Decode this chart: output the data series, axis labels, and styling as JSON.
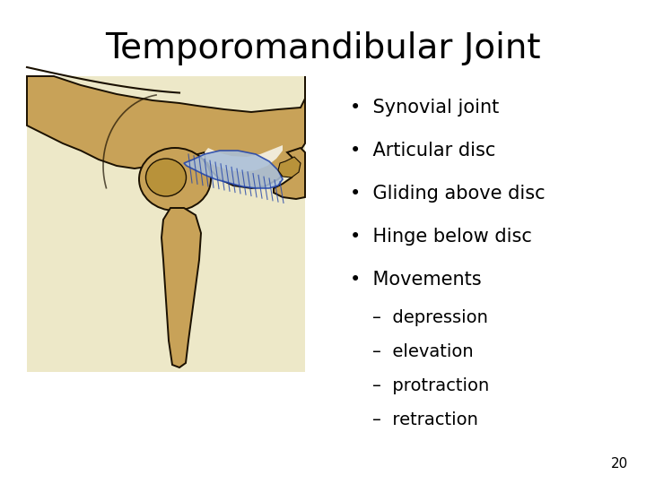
{
  "title": "Temporomandibular Joint",
  "title_fontsize": 28,
  "background_color": "#ffffff",
  "bullet_points": [
    "Synovial joint",
    "Articular disc",
    "Gliding above disc",
    "Hinge below disc",
    "Movements"
  ],
  "sub_bullets": [
    "–  depression",
    "–  elevation",
    "–  protraction",
    "–  retraction"
  ],
  "bullet_fontsize": 15,
  "sub_bullet_fontsize": 14,
  "page_number": "20",
  "image_bg": "#ede8c8",
  "bone_color": "#c8a258",
  "bone_edge": "#1a1000",
  "disc_color": "#aabfd8",
  "disc_edge": "#2244aa"
}
